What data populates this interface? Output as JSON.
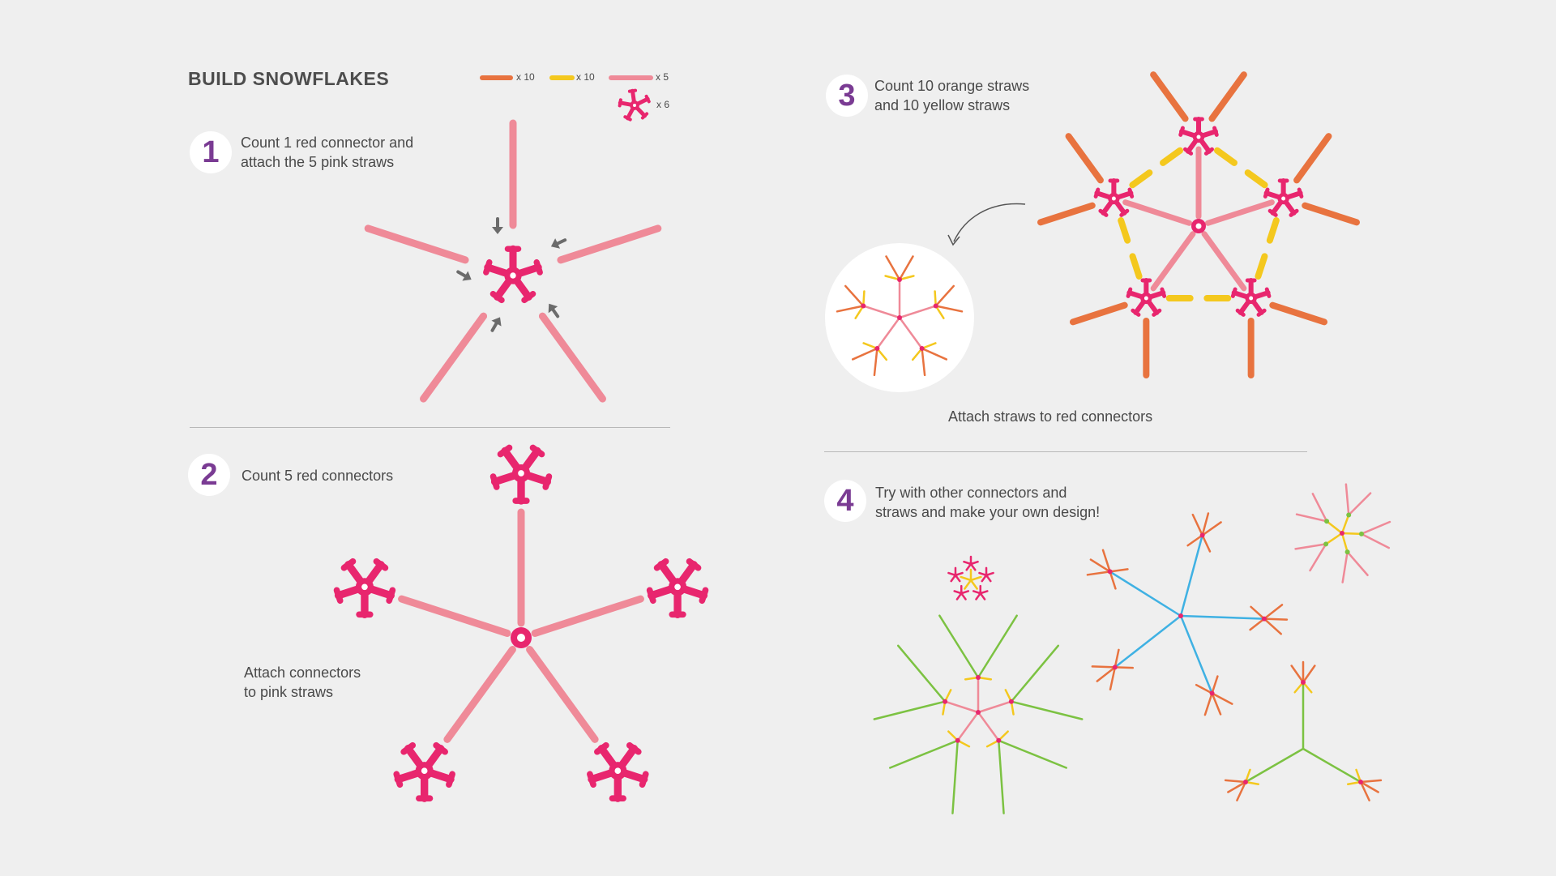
{
  "title": "BUILD SNOWFLAKES",
  "legend": [
    {
      "label": "x 10",
      "color": "#e8733f"
    },
    {
      "label": "x 10",
      "color": "#f4c81e"
    },
    {
      "label": "x 5",
      "color": "#ef8a98"
    },
    {
      "label": "x 6",
      "color": "#e8266e"
    }
  ],
  "steps": [
    {
      "number": "1",
      "lines": [
        "Count 1 red connector and",
        "attach the 5 pink straws"
      ]
    },
    {
      "number": "2",
      "lines": [
        "Count 5 red connectors"
      ],
      "caption_lines": [
        "Attach connectors",
        "to pink straws"
      ]
    },
    {
      "number": "3",
      "lines": [
        "Count 10 orange straws",
        "and 10 yellow straws"
      ],
      "caption": "Attach straws to red connectors"
    },
    {
      "number": "4",
      "lines": [
        "Try with other connectors and",
        "straws and make your own design!"
      ]
    }
  ],
  "colors": {
    "orange": "#e8733f",
    "yellow": "#f4c81e",
    "pink": "#ef8a98",
    "red_connector": "#e8266e",
    "blue": "#3fb1e3",
    "green": "#7cc242",
    "step_number": "#7a3b93"
  }
}
